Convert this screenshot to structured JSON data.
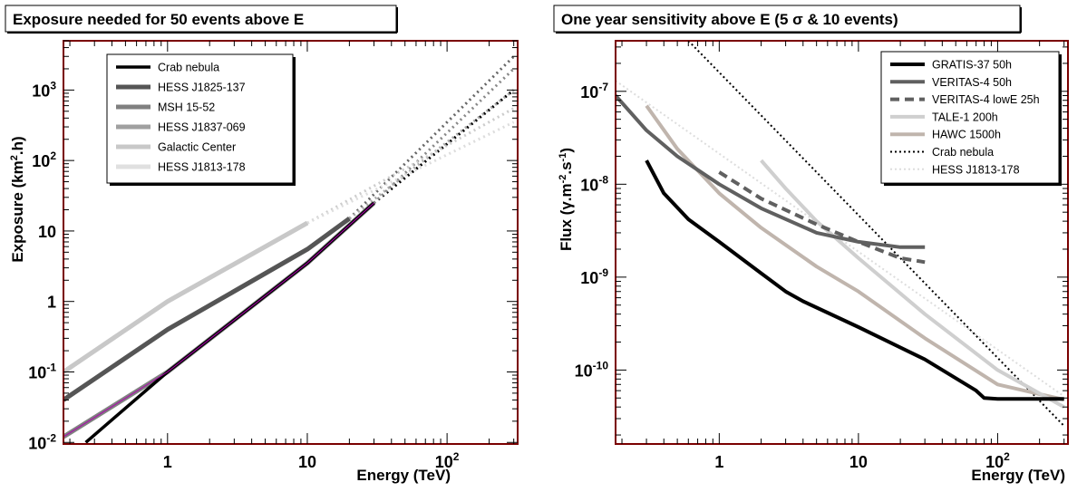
{
  "chart_data": [
    {
      "type": "line",
      "title": "Exposure needed for 50 events above E",
      "xlabel": "Energy (TeV)",
      "ylabel": "Exposure (km2.h)",
      "xscale": "log",
      "yscale": "log",
      "xlim": [
        0.18,
        320
      ],
      "ylim": [
        0.0095,
        5000
      ],
      "x_ticks": [
        {
          "value": 1,
          "label": "1"
        },
        {
          "value": 10,
          "label": "10"
        },
        {
          "value": 100,
          "label": "10",
          "exp": "2"
        }
      ],
      "y_ticks": [
        {
          "value": 0.01,
          "label": "10",
          "exp": "-2"
        },
        {
          "value": 0.1,
          "label": "10",
          "exp": "-1"
        },
        {
          "value": 1,
          "label": "1"
        },
        {
          "value": 10,
          "label": "10"
        },
        {
          "value": 100,
          "label": "10",
          "exp": "2"
        },
        {
          "value": 1000,
          "label": "10",
          "exp": "3"
        }
      ],
      "legend_position": "top-left",
      "frame_color": "#7a0000",
      "series": [
        {
          "name": "Crab nebula",
          "color": "#000000",
          "width": 3.5,
          "x": [
            0.26,
            1,
            10,
            30
          ],
          "y": [
            0.01,
            0.1,
            3.5,
            25
          ],
          "ext_x": [
            30,
            300
          ],
          "ext_y": [
            25,
            1000
          ],
          "ext_color": "#000000"
        },
        {
          "name": "HESS J1825-137",
          "color": "#555555",
          "width": 5,
          "x": [
            0.18,
            1,
            10,
            20
          ],
          "y": [
            0.04,
            0.4,
            5.5,
            15
          ],
          "ext_x": [
            20,
            300
          ],
          "ext_y": [
            15,
            3000
          ],
          "ext_color": "#666666"
        },
        {
          "name": "MSH 15-52",
          "color": "#808080",
          "width": 5,
          "x": [
            0.18,
            1,
            10,
            30
          ],
          "y": [
            0.012,
            0.1,
            3.5,
            25
          ],
          "ext_x": [
            30,
            300
          ],
          "ext_y": [
            25,
            2000
          ],
          "ext_color": "#888888"
        },
        {
          "name": "HESS J1837-069",
          "color": "#a0a0a0",
          "width": 5,
          "x": [
            0.18,
            1,
            10,
            20
          ],
          "y": [
            0.04,
            0.4,
            5.5,
            15
          ],
          "ext_x": [
            20,
            300
          ],
          "ext_y": [
            15,
            1000
          ],
          "ext_color": "#aaaaaa"
        },
        {
          "name": "Galactic Center",
          "color": "#c8c8c8",
          "width": 5,
          "x": [
            0.18,
            1,
            10
          ],
          "y": [
            0.1,
            1,
            13
          ],
          "ext_x": [
            10,
            300
          ],
          "ext_y": [
            13,
            550
          ],
          "ext_color": "#cccccc"
        },
        {
          "name": "HESS J1813-178",
          "color": "#e0e0e0",
          "width": 5,
          "x": [
            0.18,
            1,
            10
          ],
          "y": [
            0.1,
            1,
            13
          ],
          "ext_x": [
            10,
            300
          ],
          "ext_y": [
            13,
            350
          ],
          "ext_color": "#dddddd"
        }
      ],
      "extra_line": {
        "color": "#b000b0",
        "x": [
          0.18,
          1,
          10,
          30
        ],
        "y": [
          0.012,
          0.1,
          3.5,
          25
        ]
      }
    },
    {
      "type": "line",
      "title": "One year sensitivity above E (5 σ & 10 events)",
      "xlabel": "Energy (TeV)",
      "ylabel": "Flux (γ.m-2.s-1)",
      "xscale": "log",
      "yscale": "log",
      "xlim": [
        0.18,
        320
      ],
      "ylim": [
        1.6e-11,
        3.5e-07
      ],
      "x_ticks": [
        {
          "value": 1,
          "label": "1"
        },
        {
          "value": 10,
          "label": "10"
        },
        {
          "value": 100,
          "label": "10",
          "exp": "2"
        }
      ],
      "y_ticks": [
        {
          "value": 1e-10,
          "label": "10",
          "exp": "-10"
        },
        {
          "value": 1e-09,
          "label": "10",
          "exp": "-9"
        },
        {
          "value": 1e-08,
          "label": "10",
          "exp": "-8"
        },
        {
          "value": 1e-07,
          "label": "10",
          "exp": "-7"
        }
      ],
      "legend_position": "top-right",
      "frame_color": "#7a0000",
      "series": [
        {
          "name": "GRATIS-37 50h",
          "color": "#000000",
          "width": 4,
          "dash": "",
          "x": [
            0.3,
            0.4,
            0.6,
            1,
            2,
            3,
            4,
            10,
            30,
            70,
            80,
            100,
            200,
            300
          ],
          "y": [
            1.8e-08,
            8e-09,
            4.2e-09,
            2.4e-09,
            1.1e-09,
            7e-10,
            5.5e-10,
            2.9e-10,
            1.3e-10,
            6e-11,
            5e-11,
            4.9e-11,
            4.9e-11,
            4.9e-11
          ]
        },
        {
          "name": "VERITAS-4 50h",
          "color": "#606060",
          "width": 4,
          "dash": "",
          "x": [
            0.18,
            0.3,
            0.5,
            1,
            2,
            5,
            10,
            20,
            30
          ],
          "y": [
            9e-08,
            3.8e-08,
            2e-08,
            1e-08,
            5.5e-09,
            3e-09,
            2.4e-09,
            2.1e-09,
            2.1e-09
          ]
        },
        {
          "name": "VERITAS-4 lowE 25h",
          "color": "#606060",
          "width": 4,
          "dash": "10,6",
          "x": [
            1,
            2,
            5,
            10,
            20,
            30
          ],
          "y": [
            1.35e-08,
            7e-09,
            3.7e-09,
            2.4e-09,
            1.6e-09,
            1.45e-09
          ]
        },
        {
          "name": "TALE-1 200h",
          "color": "#cfcfcf",
          "width": 4,
          "dash": "",
          "x": [
            2,
            3,
            5,
            10,
            30,
            100,
            300
          ],
          "y": [
            1.8e-08,
            9e-09,
            4e-09,
            1.6e-09,
            4e-10,
            1e-10,
            4e-11
          ]
        },
        {
          "name": "HAWC 1500h",
          "color": "#c0b5ad",
          "width": 4,
          "dash": "",
          "x": [
            0.3,
            0.5,
            1,
            2,
            5,
            10,
            30,
            100,
            200,
            300
          ],
          "y": [
            7e-08,
            2.4e-08,
            8e-09,
            3.4e-09,
            1.3e-09,
            7e-10,
            2.2e-10,
            7e-11,
            5.5e-11,
            4.8e-11
          ]
        },
        {
          "name": "Crab nebula",
          "color": "#000000",
          "width": 2,
          "dash": "2,3",
          "x": [
            0.6,
            300
          ],
          "y": [
            3.5e-07,
            2.5e-11
          ]
        },
        {
          "name": "HESS J1813-178",
          "color": "#dddddd",
          "width": 2,
          "dash": "2,3",
          "x": [
            0.18,
            300
          ],
          "y": [
            1.3e-07,
            5.2e-11
          ]
        }
      ]
    }
  ]
}
